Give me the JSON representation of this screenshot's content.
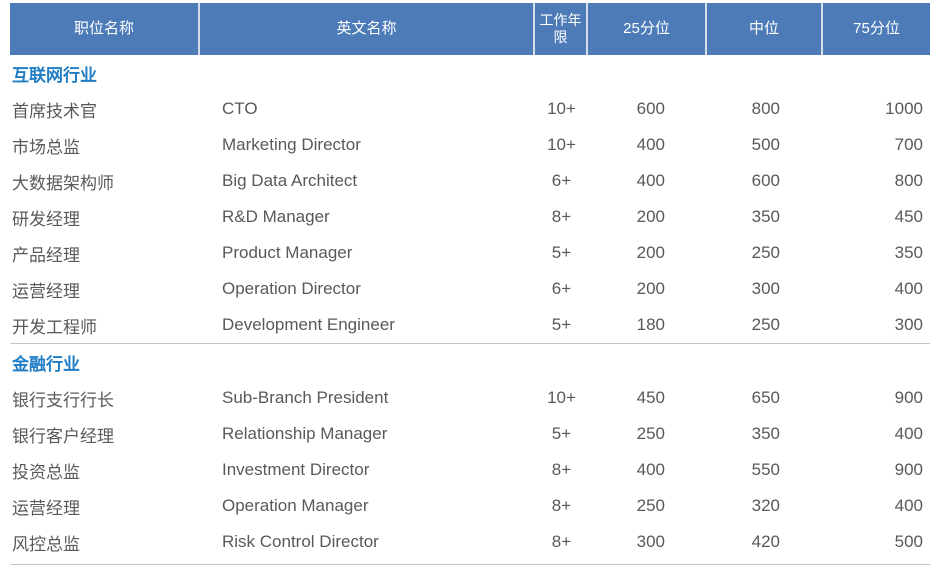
{
  "table": {
    "columns": [
      "职位名称",
      "英文名称",
      "工作年限",
      "25分位",
      "中位",
      "75分位"
    ],
    "sections": [
      {
        "title": "互联网行业",
        "rows": [
          [
            "首席技术官",
            "CTO",
            "10+",
            "600",
            "800",
            "1000"
          ],
          [
            "市场总监",
            "Marketing Director",
            "10+",
            "400",
            "500",
            "700"
          ],
          [
            "大数据架构师",
            "Big Data Architect",
            "6+",
            "400",
            "600",
            "800"
          ],
          [
            "研发经理",
            "R&D Manager",
            "8+",
            "200",
            "350",
            "450"
          ],
          [
            "产品经理",
            "Product Manager",
            "5+",
            "200",
            "250",
            "350"
          ],
          [
            "运营经理",
            "Operation Director",
            "6+",
            "200",
            "300",
            "400"
          ],
          [
            "开发工程师",
            "Development Engineer",
            "5+",
            "180",
            "250",
            "300"
          ]
        ]
      },
      {
        "title": "金融行业",
        "rows": [
          [
            "银行支行行长",
            "Sub-Branch President",
            "10+",
            "450",
            "650",
            "900"
          ],
          [
            "银行客户经理",
            "Relationship Manager",
            "5+",
            "250",
            "350",
            "400"
          ],
          [
            "投资总监",
            "Investment Director",
            "8+",
            "400",
            "550",
            "900"
          ],
          [
            "运营经理",
            "Operation Manager",
            "8+",
            "250",
            "320",
            "400"
          ],
          [
            "风控总监",
            "Risk Control Director",
            "8+",
            "300",
            "420",
            "500"
          ]
        ]
      }
    ]
  },
  "colors": {
    "header_background": "#4C7BB8",
    "header_text": "#FFFFFF",
    "section_title_text": "#1F7DC5",
    "body_text": "#595959",
    "divider": "#C6C6C6"
  }
}
